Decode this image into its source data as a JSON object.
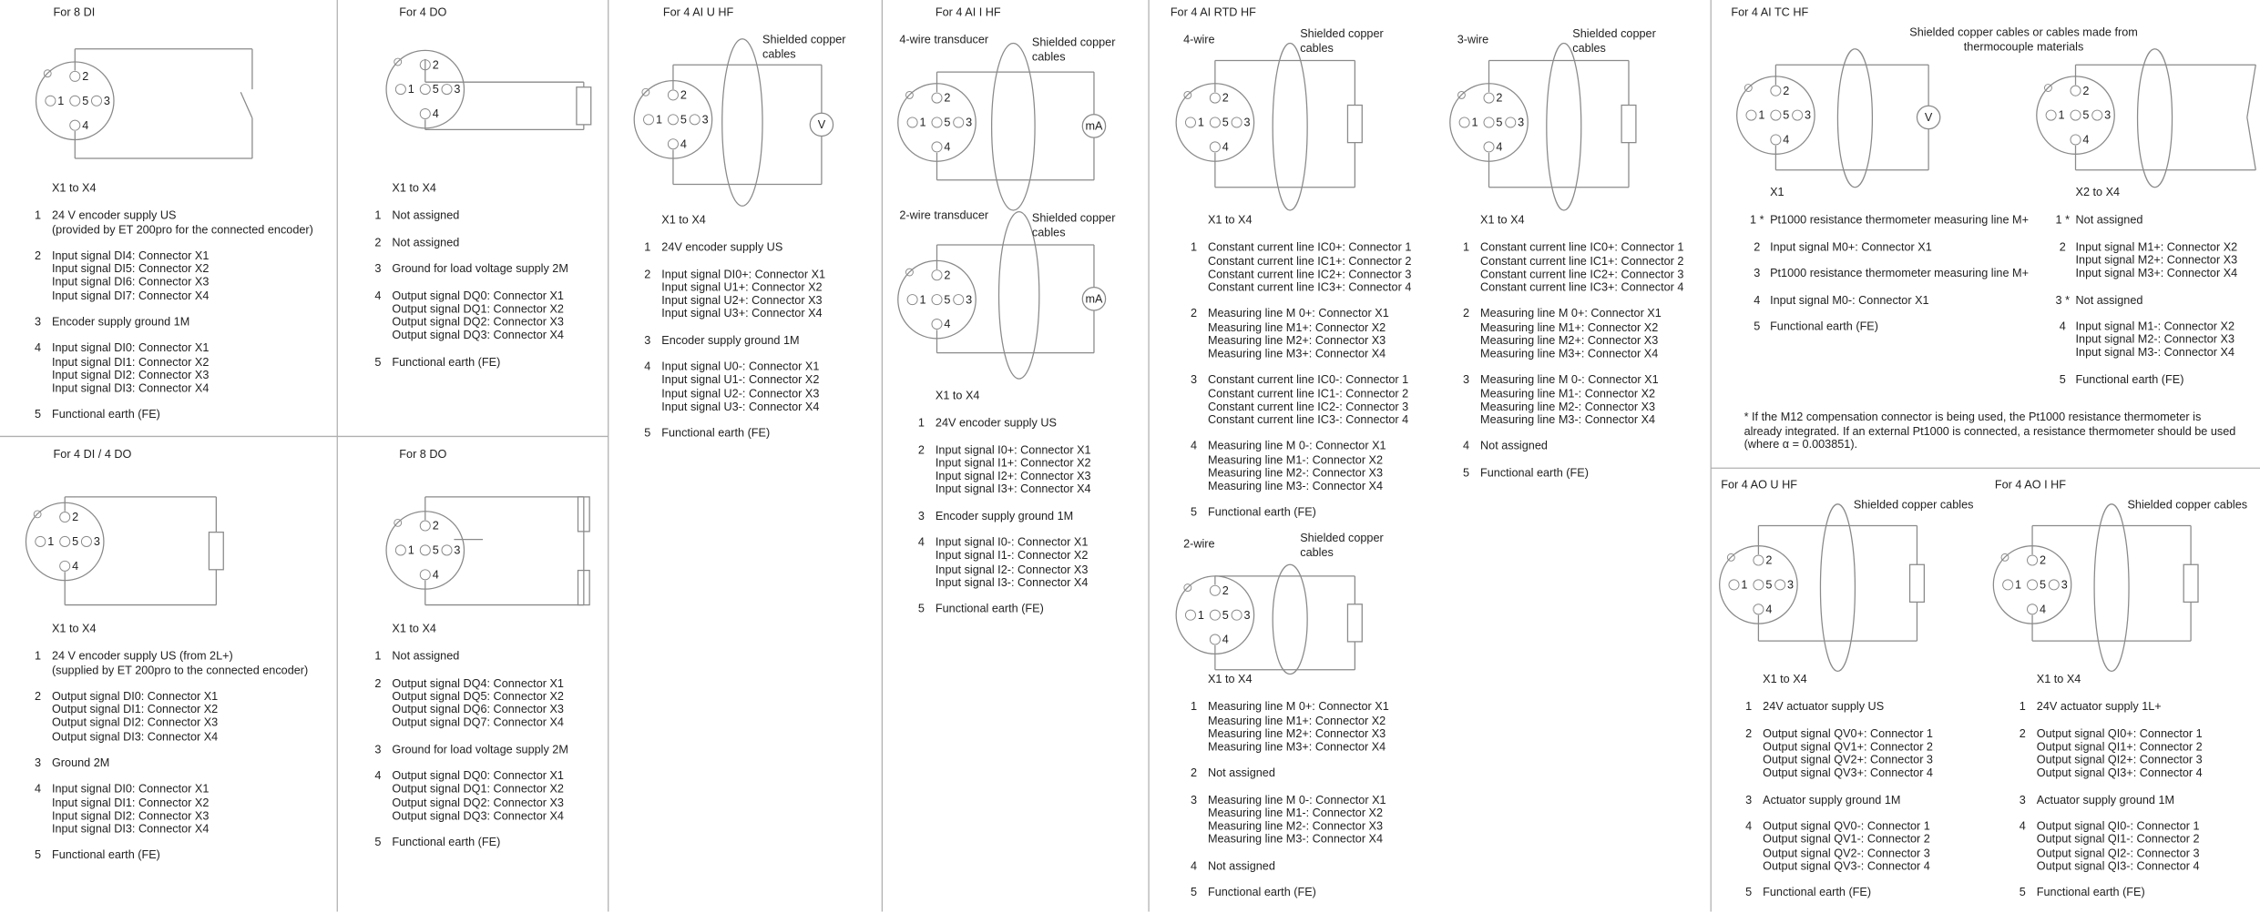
{
  "connector_pins": [
    "1",
    "2",
    "3",
    "4",
    "5"
  ],
  "panels": [
    {
      "title": "For 8 DI",
      "lists": [
        {
          "label": "X1 to X4",
          "items": [
            {
              "num": "1",
              "lines": [
                "24 V encoder supply US",
                "(provided by ET 200pro for the connected encoder)"
              ]
            },
            {
              "num": "2",
              "lines": [
                "Input signal DI4: Connector X1",
                "Input signal DI5: Connector X2",
                "Input signal DI6: Connector X3",
                "Input signal DI7: Connector X4"
              ]
            },
            {
              "num": "3",
              "lines": [
                "Encoder supply ground 1M"
              ]
            },
            {
              "num": "4",
              "lines": [
                "Input signal DI0: Connector X1",
                "Input signal DI1: Connector X2",
                "Input signal DI2: Connector X3",
                "Input signal DI3: Connector X4"
              ]
            },
            {
              "num": "5",
              "lines": [
                "Functional earth (FE)"
              ]
            }
          ]
        }
      ]
    },
    {
      "title": "For 4 DO",
      "lists": [
        {
          "label": "X1 to X4",
          "items": [
            {
              "num": "1",
              "lines": [
                "Not assigned"
              ]
            },
            {
              "num": "2",
              "lines": [
                "Not assigned"
              ]
            },
            {
              "num": "3",
              "lines": [
                "Ground for load voltage supply 2M"
              ]
            },
            {
              "num": "4",
              "lines": [
                "Output signal DQ0: Connector X1",
                "Output signal DQ1: Connector X2",
                "Output signal DQ2: Connector X3",
                "Output signal DQ3: Connector X4"
              ]
            },
            {
              "num": "5",
              "lines": [
                "Functional earth (FE)"
              ]
            }
          ]
        }
      ]
    },
    {
      "title": "For 4 AI U HF",
      "diagrams": [
        {
          "cables": [
            "Shielded copper",
            "cables"
          ],
          "meter": "V"
        }
      ],
      "lists": [
        {
          "label": "X1 to X4",
          "items": [
            {
              "num": "1",
              "lines": [
                "24V encoder supply US"
              ]
            },
            {
              "num": "2",
              "lines": [
                "Input signal DI0+: Connector X1",
                "Input signal U1+: Connector X2",
                "Input signal U2+: Connector X3",
                "Input signal U3+: Connector X4"
              ]
            },
            {
              "num": "3",
              "lines": [
                "Encoder supply ground 1M"
              ]
            },
            {
              "num": "4",
              "lines": [
                "Input signal U0-: Connector X1",
                "Input signal U1-: Connector X2",
                "Input signal U2-: Connector X3",
                "Input signal U3-: Connector X4"
              ]
            },
            {
              "num": "5",
              "lines": [
                "Functional earth (FE)"
              ]
            }
          ]
        }
      ]
    },
    {
      "title": "For 4 AI I HF",
      "diagrams": [
        {
          "heading": "4-wire transducer",
          "cables": [
            "Shielded copper",
            "cables"
          ],
          "meter": "mA"
        },
        {
          "heading": "2-wire transducer",
          "cables": [
            "Shielded copper",
            "cables"
          ],
          "meter": "mA"
        }
      ],
      "lists": [
        {
          "label": "X1 to X4",
          "items": [
            {
              "num": "1",
              "lines": [
                "24V encoder supply US"
              ]
            },
            {
              "num": "2",
              "lines": [
                "Input signal I0+: Connector X1",
                "Input signal I1+: Connector X2",
                "Input signal I2+: Connector X3",
                "Input signal I3+: Connector X4"
              ]
            },
            {
              "num": "3",
              "lines": [
                "Encoder supply ground 1M"
              ]
            },
            {
              "num": "4",
              "lines": [
                "Input signal I0-: Connector X1",
                "Input signal I1-: Connector X2",
                "Input signal I2-: Connector X3",
                "Input signal I3-: Connector X4"
              ]
            },
            {
              "num": "5",
              "lines": [
                "Functional earth (FE)"
              ]
            }
          ]
        }
      ]
    },
    {
      "title": "For 4 AI RTD HF",
      "diagrams": [
        {
          "heading": "4-wire",
          "cables": [
            "Shielded copper",
            "cables"
          ]
        },
        {
          "heading": "3-wire",
          "cables": [
            "Shielded copper",
            "cables"
          ]
        },
        {
          "heading": "2-wire",
          "cables": [
            "Shielded copper",
            "cables"
          ]
        }
      ],
      "lists": [
        {
          "label": "X1 to X4",
          "items": [
            {
              "num": "1",
              "lines": [
                "Constant current line IC0+: Connector 1",
                "Constant current line IC1+: Connector 2",
                "Constant current line IC2+: Connector 3",
                "Constant current line IC3+: Connector 4"
              ]
            },
            {
              "num": "2",
              "lines": [
                "Measuring line M 0+: Connector X1",
                "Measuring line M1+: Connector X2",
                "Measuring line M2+: Connector X3",
                "Measuring line M3+: Connector X4"
              ]
            },
            {
              "num": "3",
              "lines": [
                "Constant current line IC0-: Connector 1",
                "Constant current line IC1-: Connector 2",
                "Constant current line IC2-: Connector 3",
                "Constant current line IC3-: Connector 4"
              ]
            },
            {
              "num": "4",
              "lines": [
                "Measuring line M 0-: Connector X1",
                "Measuring line M1-: Connector X2",
                "Measuring line M2-: Connector X3",
                "Measuring line M3-: Connector X4"
              ]
            },
            {
              "num": "5",
              "lines": [
                "Functional earth (FE)"
              ]
            }
          ]
        },
        {
          "label": "X1 to X4",
          "items": [
            {
              "num": "1",
              "lines": [
                "Constant current line IC0+: Connector 1",
                "Constant current line IC1+: Connector 2",
                "Constant current line IC2+: Connector 3",
                "Constant current line IC3+: Connector 4"
              ]
            },
            {
              "num": "2",
              "lines": [
                "Measuring line M 0+: Connector X1",
                "Measuring line M1+: Connector X2",
                "Measuring line M2+: Connector X3",
                "Measuring line M3+: Connector X4"
              ]
            },
            {
              "num": "3",
              "lines": [
                "Measuring line M 0-: Connector X1",
                "Measuring line M1-: Connector X2",
                "Measuring line M2-: Connector X3",
                "Measuring line M3-: Connector X4"
              ]
            },
            {
              "num": "4",
              "lines": [
                "Not assigned"
              ]
            },
            {
              "num": "5",
              "lines": [
                "Functional earth (FE)"
              ]
            }
          ]
        },
        {
          "label": "X1 to X4",
          "items": [
            {
              "num": "1",
              "lines": [
                "Measuring line M 0+: Connector X1",
                "Measuring line M1+: Connector X2",
                "Measuring line M2+: Connector X3",
                "Measuring line M3+: Connector X4"
              ]
            },
            {
              "num": "2",
              "lines": [
                "Not assigned"
              ]
            },
            {
              "num": "3",
              "lines": [
                "Measuring line M 0-: Connector X1",
                "Measuring line M1-: Connector X2",
                "Measuring line M2-: Connector X3",
                "Measuring line M3-: Connector X4"
              ]
            },
            {
              "num": "4",
              "lines": [
                "Not assigned"
              ]
            },
            {
              "num": "5",
              "lines": [
                "Functional earth (FE)"
              ]
            }
          ]
        }
      ]
    },
    {
      "title": "For 4 AI TC HF",
      "cables": [
        "Shielded copper cables or cables made from",
        "thermocouple materials"
      ],
      "diagrams": [
        {
          "meter": "V"
        }
      ],
      "lists": [
        {
          "label": "X1",
          "items": [
            {
              "num": "1 *",
              "lines": [
                "Pt1000 resistance thermometer measuring line M+"
              ]
            },
            {
              "num": "2",
              "lines": [
                "Input signal M0+: Connector X1"
              ]
            },
            {
              "num": "3",
              "lines": [
                "Pt1000 resistance thermometer measuring line M+"
              ]
            },
            {
              "num": "4",
              "lines": [
                "Input signal M0-: Connector X1"
              ]
            },
            {
              "num": "5",
              "lines": [
                "Functional earth (FE)"
              ]
            }
          ]
        },
        {
          "label": "X2 to X4",
          "items": [
            {
              "num": "1 *",
              "lines": [
                "Not assigned"
              ]
            },
            {
              "num": "2",
              "lines": [
                "Input signal M1+: Connector X2",
                "Input signal M2+: Connector X3",
                "Input signal M3+: Connector X4"
              ]
            },
            {
              "num": "3 *",
              "lines": [
                "Not assigned"
              ]
            },
            {
              "num": "4",
              "lines": [
                "Input signal M1-: Connector X2",
                "Input signal M2-: Connector X3",
                "Input signal M3-: Connector X4"
              ]
            },
            {
              "num": "5",
              "lines": [
                "Functional earth (FE)"
              ]
            }
          ]
        }
      ],
      "note": [
        "* If the M12 compensation connector is being used, the Pt1000 resistance thermometer is",
        "already integrated. If an external Pt1000 is connected, a resistance thermometer should be used",
        "(where α = 0.003851)."
      ]
    },
    {
      "title": "For 4 DI / 4 DO",
      "lists": [
        {
          "label": "X1 to X4",
          "items": [
            {
              "num": "1",
              "lines": [
                "24 V encoder supply US (from 2L+)",
                "(supplied by ET 200pro to the connected encoder)"
              ]
            },
            {
              "num": "2",
              "lines": [
                "Output signal DI0: Connector X1",
                "Output signal DI1: Connector X2",
                "Output signal DI2: Connector X3",
                "Output signal DI3: Connector X4"
              ]
            },
            {
              "num": "3",
              "lines": [
                "Ground 2M"
              ]
            },
            {
              "num": "4",
              "lines": [
                "Input signal DI0: Connector X1",
                "Input signal DI1: Connector X2",
                "Input signal DI2: Connector X3",
                "Input signal DI3: Connector X4"
              ]
            },
            {
              "num": "5",
              "lines": [
                "Functional earth (FE)"
              ]
            }
          ]
        }
      ]
    },
    {
      "title": "For 8 DO",
      "lists": [
        {
          "label": "X1 to X4",
          "items": [
            {
              "num": "1",
              "lines": [
                "Not assigned"
              ]
            },
            {
              "num": "2",
              "lines": [
                "Output signal DQ4: Connector X1",
                "Output signal DQ5: Connector X2",
                "Output signal DQ6: Connector X3",
                "Output signal DQ7: Connector X4"
              ]
            },
            {
              "num": "3",
              "lines": [
                "Ground for load voltage supply 2M"
              ]
            },
            {
              "num": "4",
              "lines": [
                "Output signal DQ0: Connector X1",
                "Output signal DQ1: Connector X2",
                "Output signal DQ2: Connector X3",
                "Output signal DQ3: Connector X4"
              ]
            },
            {
              "num": "5",
              "lines": [
                "Functional earth (FE)"
              ]
            }
          ]
        }
      ]
    },
    {
      "title": "For 4 AO U HF",
      "cables": [
        "Shielded copper cables"
      ],
      "lists": [
        {
          "label": "X1 to X4",
          "items": [
            {
              "num": "1",
              "lines": [
                "24V actuator supply US"
              ]
            },
            {
              "num": "2",
              "lines": [
                "Output signal QV0+: Connector 1",
                "Output signal QV1+: Connector 2",
                "Output signal QV2+: Connector 3",
                "Output signal QV3+: Connector 4"
              ]
            },
            {
              "num": "3",
              "lines": [
                "Actuator supply ground 1M"
              ]
            },
            {
              "num": "4",
              "lines": [
                "Output signal QV0-: Connector 1",
                "Output signal QV1-: Connector 2",
                "Output signal QV2-: Connector 3",
                "Output signal QV3-: Connector 4"
              ]
            },
            {
              "num": "5",
              "lines": [
                "Functional earth (FE)"
              ]
            }
          ]
        }
      ]
    },
    {
      "title": "For 4 AO I HF",
      "cables": [
        "Shielded copper cables"
      ],
      "lists": [
        {
          "label": "X1 to X4",
          "items": [
            {
              "num": "1",
              "lines": [
                "24V actuator supply 1L+"
              ]
            },
            {
              "num": "2",
              "lines": [
                "Output signal QI0+: Connector 1",
                "Output signal QI1+: Connector 2",
                "Output signal QI2+: Connector 3",
                "Output signal QI3+: Connector 4"
              ]
            },
            {
              "num": "3",
              "lines": [
                "Actuator supply ground 1M"
              ]
            },
            {
              "num": "4",
              "lines": [
                "Output signal QI0-: Connector 1",
                "Output signal QI1-: Connector 2",
                "Output signal QI2-: Connector 3",
                "Output signal QI3-: Connector 4"
              ]
            },
            {
              "num": "5",
              "lines": [
                "Functional earth (FE)"
              ]
            }
          ]
        }
      ]
    }
  ]
}
